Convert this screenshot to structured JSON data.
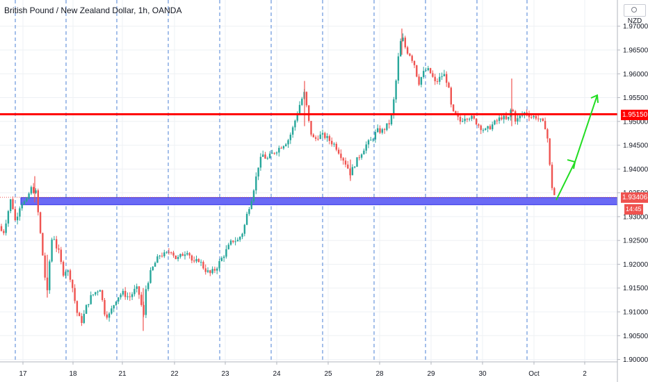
{
  "header": {
    "title": "British Pound / New Zealand Dollar, 1h, OANDA",
    "currency_label": "NZD"
  },
  "colors": {
    "up": "#26a69a",
    "down": "#ef5350",
    "resistance_line": "#ff0000",
    "support_zone_fill": "#6a6af5",
    "support_zone_border": "#2e2ee8",
    "arrow": "#22dd22",
    "session_line": "#4a7fd6",
    "grid": "#eef0f4"
  },
  "chart_data": {
    "type": "candlestick",
    "title": "British Pound / New Zealand Dollar, 1h, OANDA",
    "ylabel": "NZD",
    "ylim": [
      1.8995,
      1.9755
    ],
    "y_ticks": [
      "1.97000",
      "1.96500",
      "1.96000",
      "1.95500",
      "1.95000",
      "1.94500",
      "1.94000",
      "1.93500",
      "1.93000",
      "1.92500",
      "1.92000",
      "1.91500",
      "1.91000",
      "1.90500",
      "1.90000"
    ],
    "x_ticks": [
      "17",
      "18",
      "21",
      "22",
      "23",
      "24",
      "25",
      "28",
      "29",
      "30",
      "Oct",
      "2"
    ],
    "price_path": [
      [
        0,
        1.928
      ],
      [
        4,
        1.926
      ],
      [
        10,
        1.93
      ],
      [
        16,
        1.934
      ],
      [
        22,
        1.929
      ],
      [
        30,
        1.933
      ],
      [
        38,
        1.933
      ],
      [
        44,
        1.936
      ],
      [
        52,
        1.935
      ],
      [
        56,
        1.929
      ],
      [
        60,
        1.924
      ],
      [
        64,
        1.918
      ],
      [
        68,
        1.914
      ],
      [
        72,
        1.922
      ],
      [
        76,
        1.927
      ],
      [
        80,
        1.924
      ],
      [
        86,
        1.922
      ],
      [
        90,
        1.918
      ],
      [
        96,
        1.919
      ],
      [
        102,
        1.917
      ],
      [
        108,
        1.912
      ],
      [
        112,
        1.909
      ],
      [
        118,
        1.908
      ],
      [
        124,
        1.911
      ],
      [
        130,
        1.913
      ],
      [
        136,
        1.914
      ],
      [
        144,
        1.915
      ],
      [
        150,
        1.91
      ],
      [
        156,
        1.909
      ],
      [
        162,
        1.911
      ],
      [
        168,
        1.913
      ],
      [
        176,
        1.914
      ],
      [
        186,
        1.913
      ],
      [
        196,
        1.915
      ],
      [
        202,
        1.913
      ],
      [
        206,
        1.908
      ],
      [
        210,
        1.915
      ],
      [
        216,
        1.918
      ],
      [
        222,
        1.92
      ],
      [
        230,
        1.922
      ],
      [
        238,
        1.922
      ],
      [
        246,
        1.923
      ],
      [
        254,
        1.921
      ],
      [
        262,
        1.922
      ],
      [
        270,
        1.923
      ],
      [
        278,
        1.92
      ],
      [
        286,
        1.921
      ],
      [
        294,
        1.919
      ],
      [
        302,
        1.918
      ],
      [
        310,
        1.919
      ],
      [
        318,
        1.921
      ],
      [
        326,
        1.923
      ],
      [
        334,
        1.925
      ],
      [
        342,
        1.925
      ],
      [
        350,
        1.927
      ],
      [
        356,
        1.931
      ],
      [
        362,
        1.934
      ],
      [
        368,
        1.938
      ],
      [
        372,
        1.941
      ],
      [
        378,
        1.943
      ],
      [
        384,
        1.942
      ],
      [
        390,
        1.943
      ],
      [
        398,
        1.944
      ],
      [
        406,
        1.945
      ],
      [
        414,
        1.946
      ],
      [
        420,
        1.948
      ],
      [
        426,
        1.951
      ],
      [
        432,
        1.954
      ],
      [
        438,
        1.956
      ],
      [
        441,
        1.953
      ],
      [
        446,
        1.948
      ],
      [
        452,
        1.946
      ],
      [
        458,
        1.947
      ],
      [
        466,
        1.947
      ],
      [
        474,
        1.946
      ],
      [
        482,
        1.945
      ],
      [
        490,
        1.943
      ],
      [
        498,
        1.941
      ],
      [
        504,
        1.939
      ],
      [
        510,
        1.941
      ],
      [
        518,
        1.943
      ],
      [
        526,
        1.945
      ],
      [
        534,
        1.946
      ],
      [
        542,
        1.948
      ],
      [
        550,
        1.948
      ],
      [
        556,
        1.949
      ],
      [
        562,
        1.95
      ],
      [
        566,
        1.954
      ],
      [
        570,
        1.959
      ],
      [
        574,
        1.965
      ],
      [
        578,
        1.968
      ],
      [
        584,
        1.965
      ],
      [
        590,
        1.964
      ],
      [
        596,
        1.962
      ],
      [
        602,
        1.958
      ],
      [
        608,
        1.96
      ],
      [
        614,
        1.961
      ],
      [
        620,
        1.96
      ],
      [
        626,
        1.958
      ],
      [
        632,
        1.959
      ],
      [
        638,
        1.96
      ],
      [
        644,
        1.958
      ],
      [
        650,
        1.952
      ],
      [
        656,
        1.951
      ],
      [
        662,
        1.95
      ],
      [
        668,
        1.951
      ],
      [
        676,
        1.951
      ],
      [
        684,
        1.95
      ],
      [
        690,
        1.949
      ],
      [
        698,
        1.948
      ],
      [
        706,
        1.949
      ],
      [
        714,
        1.95
      ],
      [
        722,
        1.951
      ],
      [
        730,
        1.95
      ],
      [
        736,
        1.953
      ],
      [
        742,
        1.95
      ],
      [
        748,
        1.951
      ],
      [
        756,
        1.952
      ],
      [
        764,
        1.951
      ],
      [
        772,
        1.951
      ],
      [
        778,
        1.95
      ],
      [
        784,
        1.949
      ],
      [
        788,
        1.946
      ],
      [
        791,
        1.94
      ],
      [
        795,
        1.935
      ],
      [
        800,
        1.934
      ]
    ],
    "wicks": [
      [
        50,
        1.9385,
        1.933
      ],
      [
        68,
        1.922,
        1.913
      ],
      [
        206,
        1.915,
        1.906
      ],
      [
        438,
        1.9585,
        1.949
      ],
      [
        504,
        1.942,
        1.9375
      ],
      [
        578,
        1.9695,
        1.964
      ],
      [
        736,
        1.959,
        1.949
      ]
    ],
    "annotations": {
      "resistance_price": 1.9515,
      "resistance_label": "1.95150",
      "current_price_label": "1.93406",
      "current_price": 1.93406,
      "countdown_label": "14:45",
      "support_zone": [
        1.9325,
        1.934
      ],
      "arrow_path": [
        [
          800,
          1.9335
        ],
        [
          827,
          1.9415
        ],
        [
          859,
          1.9555
        ]
      ]
    }
  }
}
